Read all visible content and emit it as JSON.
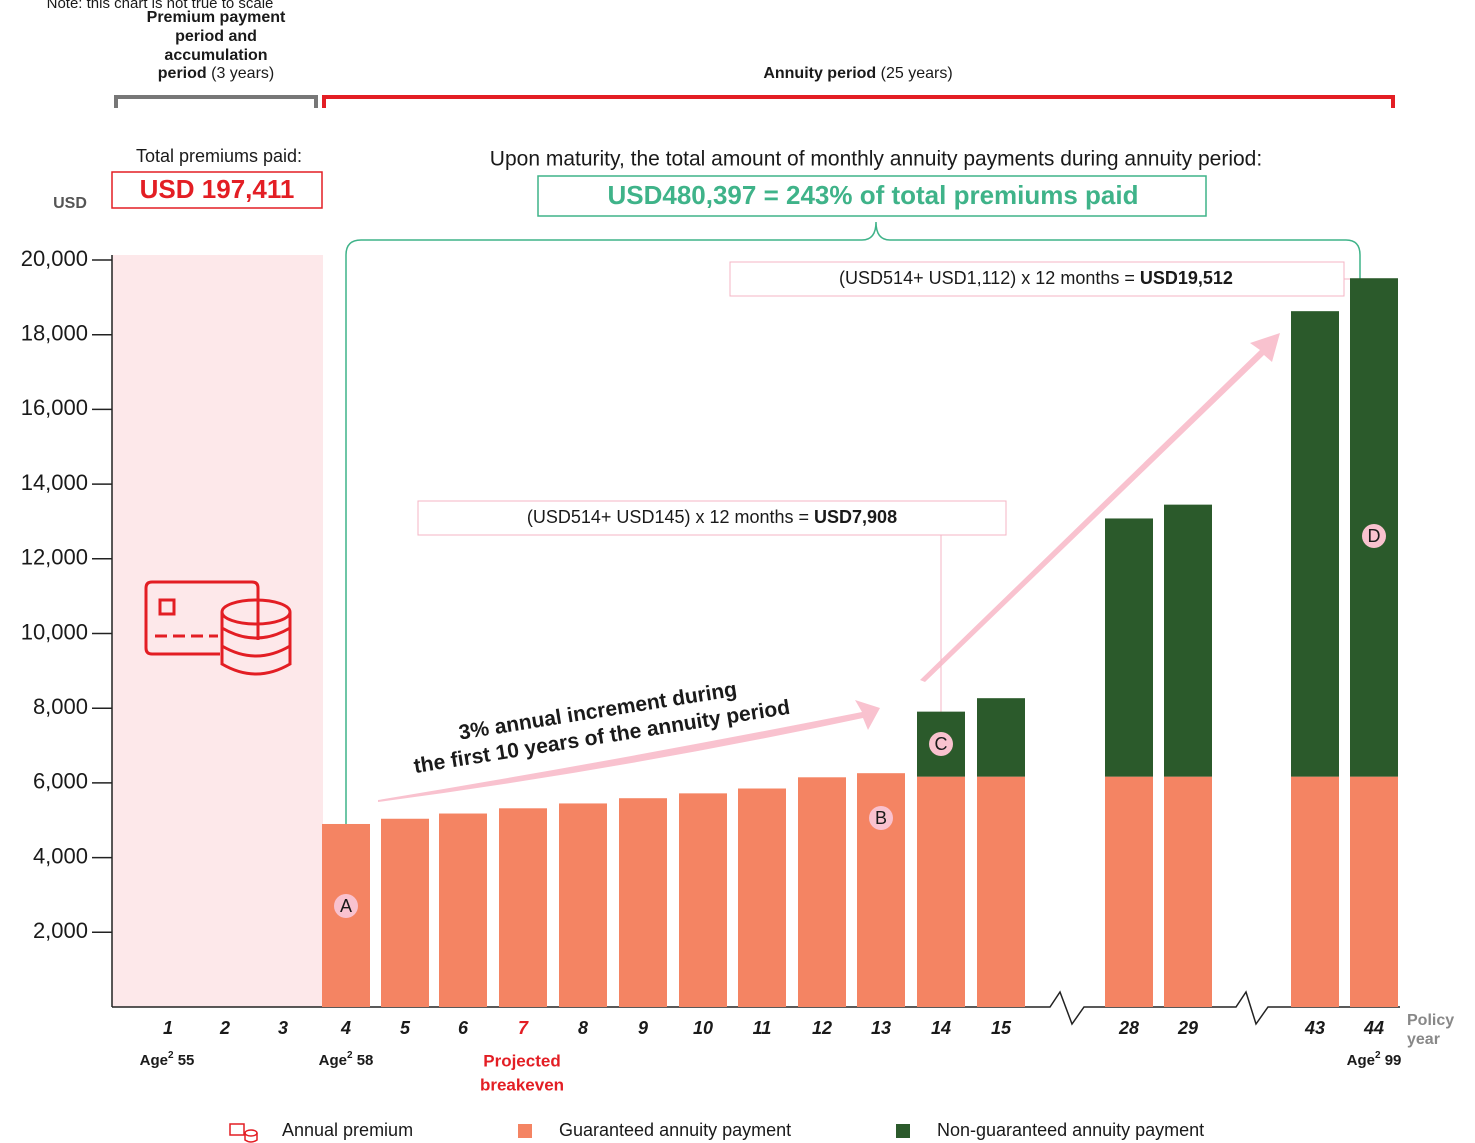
{
  "chart_data": {
    "type": "bar",
    "note": "Note: this chart is not true to scale",
    "period1": {
      "bold": [
        "Premium payment",
        "period and",
        "accumulation",
        "period"
      ],
      "normal": "(3 years)"
    },
    "period2": {
      "bold": "Annuity period",
      "normal": "(25 years)"
    },
    "total_premiums_label": "Total premiums paid:",
    "total_premiums": "USD 197,411",
    "maturity_label": "Upon maturity, the total amount of monthly annuity payments during annuity period:",
    "maturity_value": "USD480,397 = 243% of total premiums paid",
    "callout_c": {
      "normal": "(USD514+ USD145) x 12 months = ",
      "bold": "USD7,908"
    },
    "callout_d": {
      "normal": "(USD514+ USD1,112) x 12 months = ",
      "bold": "USD19,512"
    },
    "arrow_text": [
      "3% annual increment during",
      "the first 10 years of the annuity period"
    ],
    "y_label": "USD",
    "x_label": [
      "Policy",
      "year"
    ],
    "ages": [
      {
        "word": "Age",
        "sup": "2",
        "age": "55"
      },
      {
        "word": "Age",
        "sup": "2",
        "age": "58"
      },
      {
        "word": "Age",
        "sup": "2",
        "age": "99"
      }
    ],
    "breakeven": [
      "Projected",
      "breakeven"
    ],
    "markers": [
      "A",
      "B",
      "C",
      "D"
    ],
    "categories": [
      "1",
      "2",
      "3",
      "4",
      "5",
      "6",
      "7",
      "8",
      "9",
      "10",
      "11",
      "12",
      "13",
      "14",
      "15",
      "28",
      "29",
      "43",
      "44"
    ],
    "series": [
      {
        "name": "Guaranteed annuity payment",
        "color": "#f48463",
        "values": [
          null,
          null,
          null,
          4900,
          5040,
          5180,
          5320,
          5450,
          5590,
          5720,
          5850,
          6150,
          6260,
          6168,
          6168,
          6168,
          6168,
          6168,
          6168
        ]
      },
      {
        "name": "Non-guaranteed annuity payment",
        "color": "#2b5a2b",
        "values": [
          null,
          null,
          null,
          null,
          null,
          null,
          null,
          null,
          null,
          null,
          null,
          null,
          null,
          1740,
          2100,
          6912,
          7282,
          12462,
          13344
        ]
      }
    ],
    "premium_legend": "Annual premium",
    "ylim": [
      0,
      20000
    ],
    "yticks": [
      {
        "value": 2000,
        "label": "2,000"
      },
      {
        "value": 4000,
        "label": "4,000"
      },
      {
        "value": 6000,
        "label": "6,000"
      },
      {
        "value": 8000,
        "label": "8,000"
      },
      {
        "value": 10000,
        "label": "10,000"
      },
      {
        "value": 12000,
        "label": "12,000"
      },
      {
        "value": 14000,
        "label": "14,000"
      },
      {
        "value": 16000,
        "label": "16,000"
      },
      {
        "value": 18000,
        "label": "18,000"
      },
      {
        "value": 20000,
        "label": "20,000"
      }
    ]
  }
}
